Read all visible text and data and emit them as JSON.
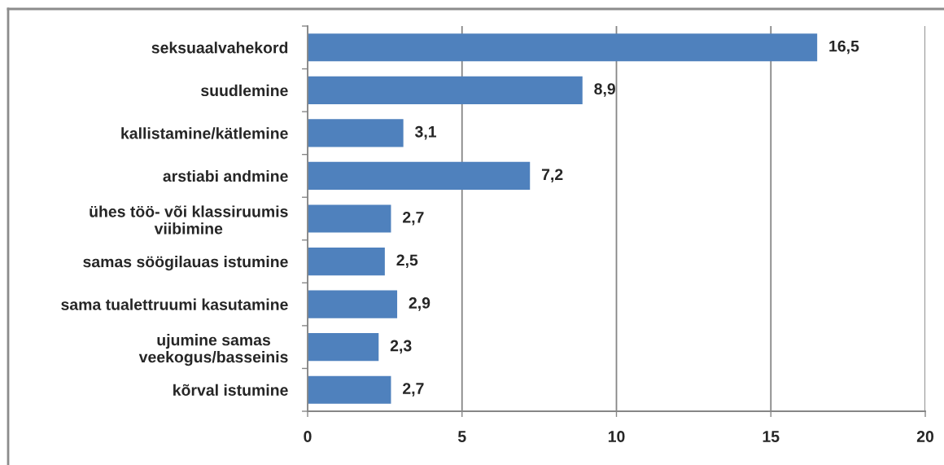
{
  "chart_data": {
    "type": "bar",
    "orientation": "horizontal",
    "categories": [
      "seksuaalvahekord",
      "suudlemine",
      "kallistamine/kätlemine",
      "arstiabi andmine",
      "ühes töö- või klassiruumis\nviibimine",
      "samas söögilauas istumine",
      "sama tualettruumi kasutamine",
      "ujumine samas\nveekogus/basseinis",
      "kõrval istumine"
    ],
    "values": [
      16.5,
      8.9,
      3.1,
      7.2,
      2.7,
      2.5,
      2.9,
      2.3,
      2.7
    ],
    "value_labels": [
      "16,5",
      "8,9",
      "3,1",
      "7,2",
      "2,7",
      "2,5",
      "2,9",
      "2,3",
      "2,7"
    ],
    "color": "#4f81bd",
    "xlim": [
      0,
      20
    ],
    "xticks": [
      0,
      5,
      10,
      15,
      20
    ],
    "grid": "x"
  }
}
